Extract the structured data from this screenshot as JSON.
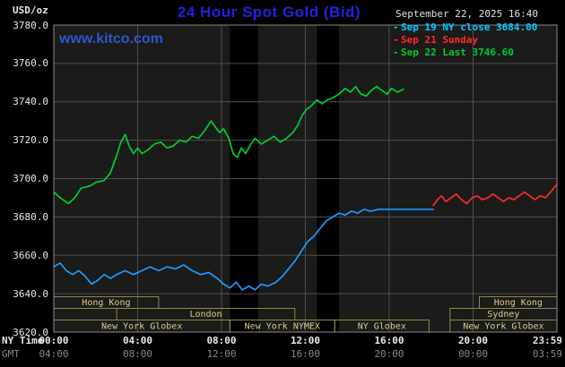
{
  "header": {
    "units_label": "USD/oz",
    "title": "24 Hour Spot Gold (Bid)",
    "datetime": "September 22, 2025 16:40",
    "watermark": "www.kitco.com"
  },
  "legend": [
    {
      "marker": "-",
      "label": "Sep 19 NY close 3684.00",
      "color": "#00c8ff"
    },
    {
      "marker": "-",
      "label": "Sep 21 Sunday",
      "color": "#ff2a2a"
    },
    {
      "marker": "-",
      "label": "Sep 22 Last 3746.60",
      "color": "#00cc33"
    }
  ],
  "colors": {
    "background": "#000000",
    "plot_bg": "#1b1b1a",
    "band": "#000000",
    "grid": "#4e4e4e",
    "frame": "#8a8a8a",
    "axis_text": "#e8e8e8",
    "gmt_text": "#8a8a8a",
    "session_text": "#d8cf8a",
    "session_border": "#8f8a40",
    "title": "#2222dd",
    "kitco": "#2f55cf"
  },
  "chart_data": {
    "type": "line",
    "title": "24 Hour Spot Gold (Bid)",
    "ylabel": "USD/oz",
    "xlim": [
      0,
      24
    ],
    "ylim": [
      3620,
      3780
    ],
    "y_tick_step": 20,
    "y_ticks": [
      "3780.0",
      "3760.0",
      "3740.0",
      "3720.0",
      "3700.0",
      "3680.0",
      "3660.0",
      "3640.0",
      "3620.0"
    ],
    "x_tick_hours": [
      0,
      4,
      8,
      12,
      16,
      20,
      24
    ],
    "x_rows": [
      {
        "label": "NY Time",
        "color": "#e8e8e8",
        "bold": true,
        "ticks": [
          "00:00",
          "04:00",
          "08:00",
          "12:00",
          "16:00",
          "20:00",
          "23:59"
        ]
      },
      {
        "label": "GMT",
        "color": "#8a8a8a",
        "bold": false,
        "ticks": [
          "04:00",
          "08:00",
          "12:00",
          "16:00",
          "20:00",
          "00:00",
          "03:59"
        ]
      }
    ],
    "shaded_regions": [
      [
        8.4,
        9.75
      ],
      [
        12.55,
        13.6
      ]
    ],
    "sessions": [
      {
        "label": "Hong Kong",
        "row": 0,
        "start": 0.0,
        "end": 5.0
      },
      {
        "label": "London",
        "row": 1,
        "start": 3.0,
        "end": 11.5
      },
      {
        "label": "New York Globex",
        "row": 2,
        "start": 0.0,
        "end": 8.4
      },
      {
        "label": "New York NYMEX",
        "row": 2,
        "start": 8.4,
        "end": 13.4
      },
      {
        "label": "NY Globex",
        "row": 2,
        "start": 13.4,
        "end": 17.9
      },
      {
        "label": "Sydney",
        "row": 1,
        "start": 18.9,
        "end": 24.0
      },
      {
        "label": "New York Globex",
        "row": 2,
        "start": 18.9,
        "end": 24.0
      },
      {
        "label": "Hong Kong",
        "row": 0,
        "start": 20.3,
        "end": 24.0
      }
    ],
    "series": [
      {
        "name": "Sep 19 NY close 3684.00",
        "color": "#1e9aff",
        "points": [
          [
            0,
            3654
          ],
          [
            0.3,
            3656
          ],
          [
            0.6,
            3652
          ],
          [
            0.9,
            3650
          ],
          [
            1.2,
            3652
          ],
          [
            1.5,
            3649
          ],
          [
            1.8,
            3645
          ],
          [
            2.1,
            3647
          ],
          [
            2.4,
            3650
          ],
          [
            2.7,
            3648
          ],
          [
            3.0,
            3650
          ],
          [
            3.4,
            3652
          ],
          [
            3.8,
            3650
          ],
          [
            4.2,
            3652
          ],
          [
            4.6,
            3654
          ],
          [
            5.0,
            3652
          ],
          [
            5.4,
            3654
          ],
          [
            5.8,
            3653
          ],
          [
            6.2,
            3655
          ],
          [
            6.6,
            3652
          ],
          [
            7.0,
            3650
          ],
          [
            7.4,
            3651
          ],
          [
            7.8,
            3648
          ],
          [
            8.1,
            3645
          ],
          [
            8.4,
            3643
          ],
          [
            8.7,
            3646
          ],
          [
            9.0,
            3642
          ],
          [
            9.3,
            3644
          ],
          [
            9.6,
            3642
          ],
          [
            9.9,
            3645
          ],
          [
            10.2,
            3644
          ],
          [
            10.6,
            3646
          ],
          [
            10.9,
            3649
          ],
          [
            11.2,
            3653
          ],
          [
            11.5,
            3657
          ],
          [
            11.8,
            3662
          ],
          [
            12.1,
            3667
          ],
          [
            12.4,
            3670
          ],
          [
            12.7,
            3674
          ],
          [
            13.0,
            3678
          ],
          [
            13.3,
            3680
          ],
          [
            13.6,
            3682
          ],
          [
            13.9,
            3681
          ],
          [
            14.2,
            3683
          ],
          [
            14.5,
            3682
          ],
          [
            14.8,
            3684
          ],
          [
            15.1,
            3683
          ],
          [
            15.5,
            3684
          ],
          [
            16.2,
            3684
          ],
          [
            17.0,
            3684
          ],
          [
            18.1,
            3684
          ]
        ]
      },
      {
        "name": "Sep 21 Sunday",
        "color": "#ff2a2a",
        "points": [
          [
            18.1,
            3686
          ],
          [
            18.3,
            3689
          ],
          [
            18.5,
            3691
          ],
          [
            18.7,
            3688
          ],
          [
            18.95,
            3690
          ],
          [
            19.2,
            3692
          ],
          [
            19.45,
            3689
          ],
          [
            19.7,
            3687
          ],
          [
            19.95,
            3690
          ],
          [
            20.2,
            3691
          ],
          [
            20.45,
            3689
          ],
          [
            20.7,
            3690
          ],
          [
            20.95,
            3692
          ],
          [
            21.2,
            3690
          ],
          [
            21.45,
            3688
          ],
          [
            21.7,
            3690
          ],
          [
            21.95,
            3689
          ],
          [
            22.2,
            3691
          ],
          [
            22.45,
            3693
          ],
          [
            22.7,
            3691
          ],
          [
            22.95,
            3689
          ],
          [
            23.2,
            3691
          ],
          [
            23.45,
            3690
          ],
          [
            23.7,
            3693
          ],
          [
            23.99,
            3697
          ]
        ]
      },
      {
        "name": "Sep 22 Last 3746.60",
        "color": "#00cc33",
        "points": [
          [
            0,
            3693
          ],
          [
            0.3,
            3690
          ],
          [
            0.7,
            3687
          ],
          [
            1.0,
            3690
          ],
          [
            1.3,
            3695
          ],
          [
            1.7,
            3696
          ],
          [
            2.0,
            3698
          ],
          [
            2.4,
            3699
          ],
          [
            2.7,
            3703
          ],
          [
            3.0,
            3712
          ],
          [
            3.2,
            3719
          ],
          [
            3.4,
            3723
          ],
          [
            3.6,
            3717
          ],
          [
            3.8,
            3713
          ],
          [
            4.0,
            3716
          ],
          [
            4.2,
            3713
          ],
          [
            4.5,
            3715
          ],
          [
            4.8,
            3718
          ],
          [
            5.1,
            3719
          ],
          [
            5.4,
            3716
          ],
          [
            5.7,
            3717
          ],
          [
            6.0,
            3720
          ],
          [
            6.3,
            3719
          ],
          [
            6.6,
            3722
          ],
          [
            6.9,
            3721
          ],
          [
            7.2,
            3725
          ],
          [
            7.5,
            3730
          ],
          [
            7.7,
            3727
          ],
          [
            7.9,
            3724
          ],
          [
            8.1,
            3726
          ],
          [
            8.35,
            3721
          ],
          [
            8.55,
            3713
          ],
          [
            8.75,
            3711
          ],
          [
            8.95,
            3716
          ],
          [
            9.15,
            3713
          ],
          [
            9.4,
            3718
          ],
          [
            9.6,
            3721
          ],
          [
            9.9,
            3718
          ],
          [
            10.2,
            3720
          ],
          [
            10.5,
            3722
          ],
          [
            10.8,
            3719
          ],
          [
            11.1,
            3721
          ],
          [
            11.4,
            3724
          ],
          [
            11.65,
            3728
          ],
          [
            11.85,
            3733
          ],
          [
            12.05,
            3736
          ],
          [
            12.3,
            3738
          ],
          [
            12.55,
            3741
          ],
          [
            12.8,
            3739
          ],
          [
            13.05,
            3741
          ],
          [
            13.3,
            3742
          ],
          [
            13.6,
            3744
          ],
          [
            13.9,
            3747
          ],
          [
            14.15,
            3745
          ],
          [
            14.4,
            3748
          ],
          [
            14.65,
            3744
          ],
          [
            14.9,
            3743
          ],
          [
            15.15,
            3746
          ],
          [
            15.4,
            3748
          ],
          [
            15.65,
            3746
          ],
          [
            15.9,
            3744
          ],
          [
            16.1,
            3747
          ],
          [
            16.4,
            3745
          ],
          [
            16.67,
            3746.6
          ]
        ]
      }
    ]
  }
}
